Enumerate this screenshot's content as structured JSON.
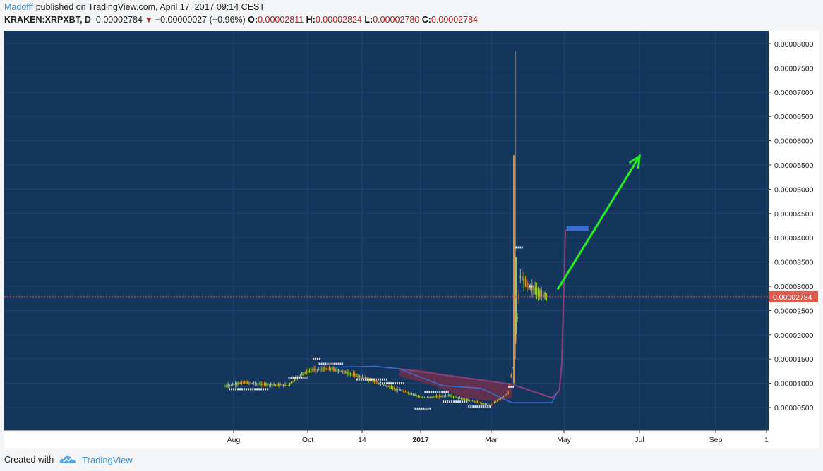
{
  "header": {
    "author": "Madofff",
    "published": "published on TradingView.com, April 17, 2017 09:14 CEST",
    "symbol": "KRAKEN:XRPXBT, D",
    "last": "0.00002784",
    "change": "−0.00000027 (−0.96%)",
    "o_label": "O:",
    "o_value": "0.00002811",
    "h_label": "H:",
    "h_value": "0.00002824",
    "l_label": "L:",
    "l_value": "0.00002780",
    "c_label": "C:",
    "c_value": "0.00002784"
  },
  "footer": {
    "created_with": "Created with",
    "brand": "TradingView"
  },
  "colors": {
    "background": "#15365c",
    "up_candle": "#9acb2f",
    "down_candle": "#e08c2e",
    "cloud_bearish": "#7a2f4a",
    "cloud_bullish": "#3b6fd0",
    "price_line": "#e05a4a",
    "arrow": "#22ee22"
  },
  "chart_data": {
    "type": "candlestick",
    "symbol": "KRAKEN:XRPXBT",
    "interval": "D",
    "last_price": 2.784e-05,
    "last_price_label": "0.00002784",
    "y_ticks": [
      "0.00000500",
      "0.00001000",
      "0.00001500",
      "0.00002000",
      "0.00002500",
      "0.00003000",
      "0.00003500",
      "0.00004000",
      "0.00004500",
      "0.00005000",
      "0.00005500",
      "0.00006000",
      "0.00006500",
      "0.00007000",
      "0.00007500",
      "0.00008000"
    ],
    "ylim": [
      5e-07,
      8.2e-06
    ],
    "x_ticks": [
      "Aug",
      "Oct",
      "14",
      "2017",
      "Mar",
      "May",
      "Jul",
      "Sep",
      "1"
    ],
    "price_path": [
      {
        "date": "2016-07-25",
        "close": 9.4e-06
      },
      {
        "date": "2016-08-10",
        "close": 1.02e-05
      },
      {
        "date": "2016-08-25",
        "close": 9.8e-06
      },
      {
        "date": "2016-09-15",
        "close": 9.6e-06
      },
      {
        "date": "2016-09-25",
        "close": 1.18e-05
      },
      {
        "date": "2016-10-05",
        "close": 1.28e-05
      },
      {
        "date": "2016-10-20",
        "close": 1.3e-05
      },
      {
        "date": "2016-11-05",
        "close": 1.2e-05
      },
      {
        "date": "2016-11-20",
        "close": 1.08e-05
      },
      {
        "date": "2016-12-10",
        "close": 9e-06
      },
      {
        "date": "2017-01-05",
        "close": 7e-06
      },
      {
        "date": "2017-01-25",
        "close": 7.5e-06
      },
      {
        "date": "2017-02-15",
        "close": 6.2e-06
      },
      {
        "date": "2017-03-01",
        "close": 5.5e-06
      },
      {
        "date": "2017-03-15",
        "close": 8e-06
      },
      {
        "date": "2017-03-20",
        "close": 1.5e-05
      },
      {
        "date": "2017-03-25",
        "close": 3.2e-05
      },
      {
        "date": "2017-04-01",
        "close": 3e-05
      },
      {
        "date": "2017-04-10",
        "close": 2.85e-05
      },
      {
        "date": "2017-04-17",
        "close": 2.784e-05
      }
    ],
    "spike_high": 7.85e-05,
    "spike_body_high": 5.7e-05,
    "cloud_segments": [
      {
        "kind": "bearish",
        "from": "2016-12-15",
        "to": "2017-03-18",
        "top": 1.3e-05,
        "bottom": 8.5e-06
      },
      {
        "kind": "bullish",
        "from": "2017-05-02",
        "to": "2017-05-20",
        "top": 4.25e-05,
        "bottom": 4.15e-05
      }
    ],
    "projection_arrow": {
      "from": {
        "date": "2017-04-25",
        "price": 2.95e-05
      },
      "to": {
        "date": "2017-07-01",
        "price": 5.68e-05
      }
    }
  }
}
